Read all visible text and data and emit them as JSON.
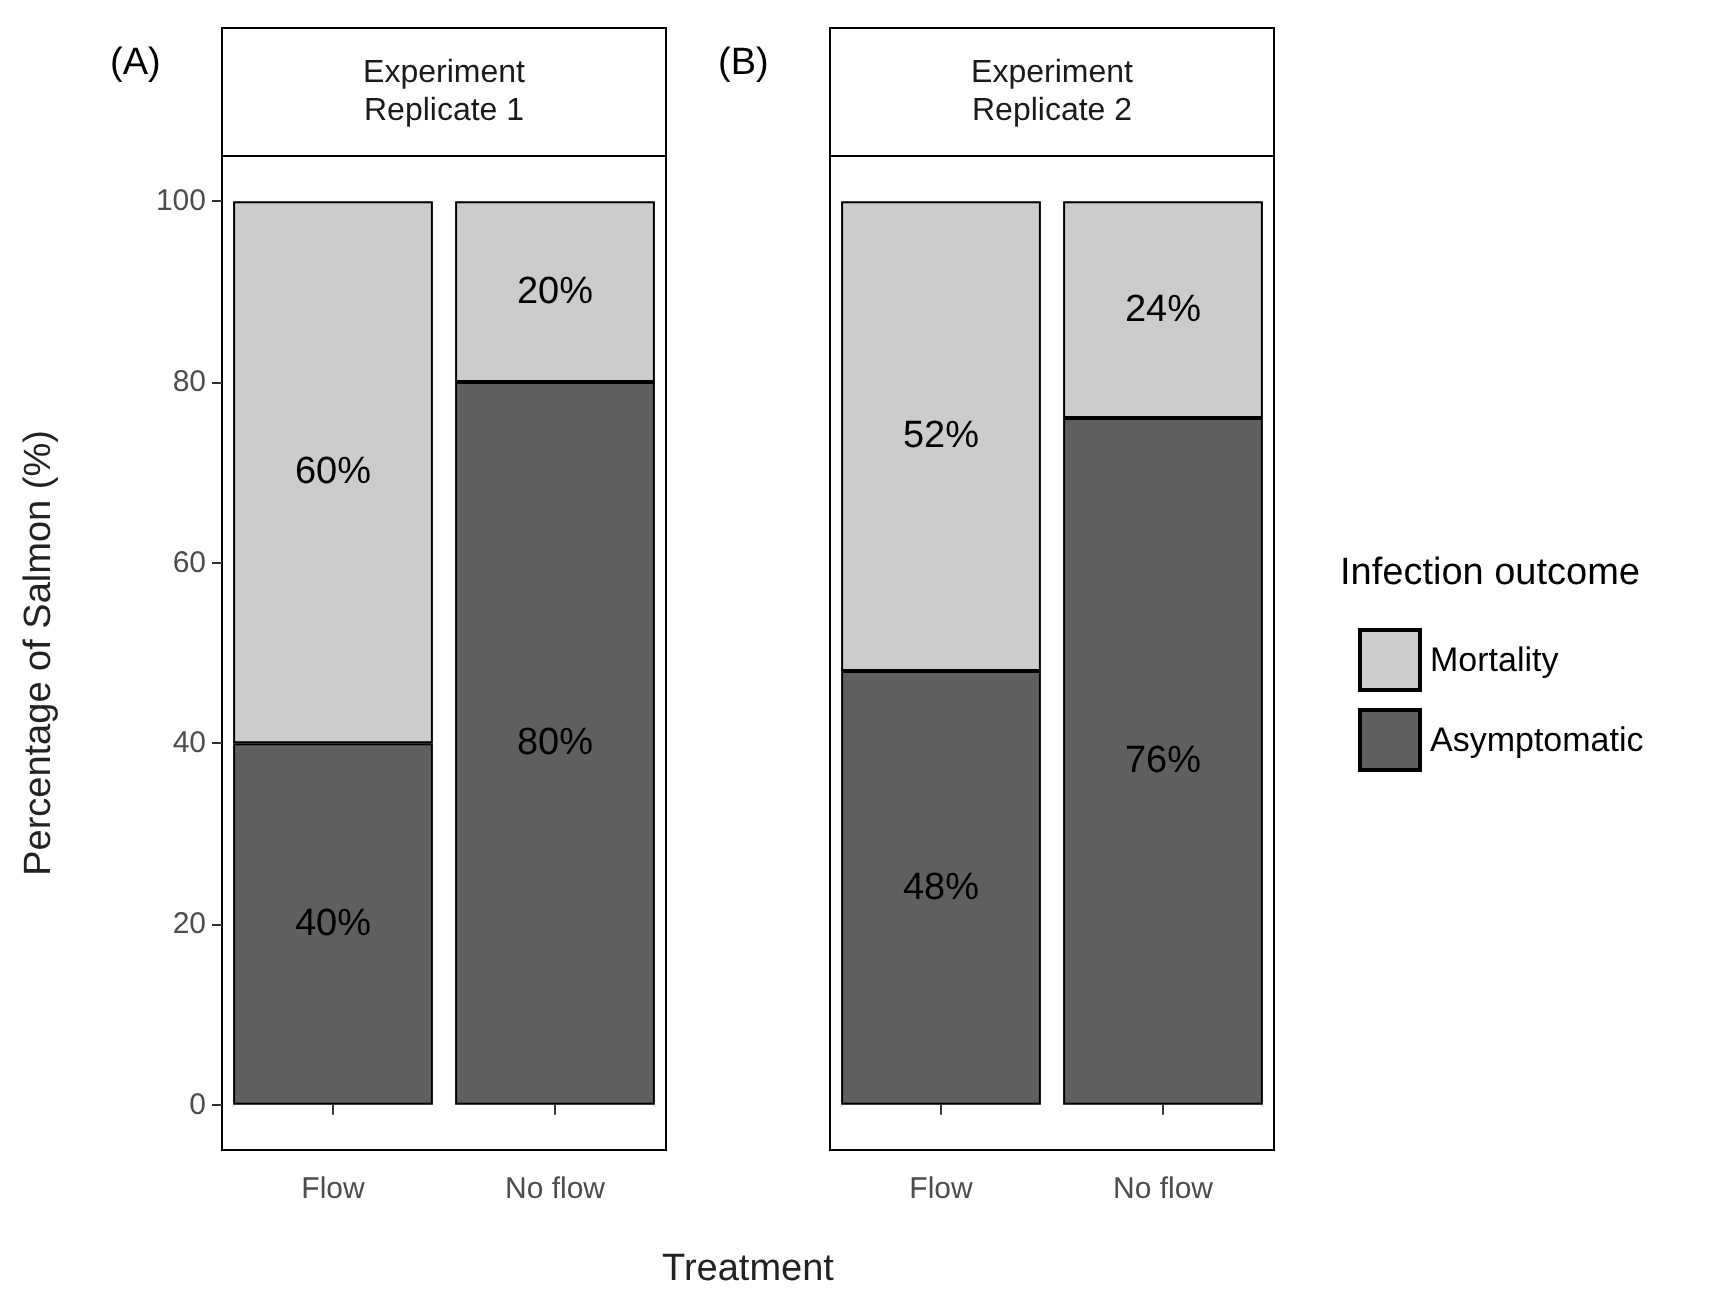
{
  "chart_data": [
    {
      "type": "bar",
      "stacked": true,
      "title": "Experiment\nReplicate 1",
      "annotations": [
        "(A)"
      ],
      "ylabel": "Percentage of Salmon (%)",
      "xlabel": "Treatment",
      "categories": [
        "Flow",
        "No flow"
      ],
      "ylim": [
        -5,
        105
      ],
      "yticks": [
        0,
        20,
        40,
        60,
        80,
        100
      ],
      "grid": false,
      "legend": false,
      "series": [
        {
          "color": "#5f5f5f",
          "values": [
            40,
            80
          ],
          "value_labels": [
            "40%",
            "80%"
          ]
        },
        {
          "color": "#cccccc",
          "values": [
            60,
            20
          ],
          "value_labels": [
            "60%",
            "20%"
          ]
        }
      ]
    },
    {
      "type": "bar",
      "stacked": true,
      "title": "Experiment\nReplicate 2",
      "annotations": [
        "(B)"
      ],
      "legend_title": "Infection outcome",
      "legend": "right",
      "tick_labels": "x",
      "categories": [
        "Flow",
        "No flow"
      ],
      "ylim": [
        -5,
        105
      ],
      "yticks": [
        0,
        20,
        40,
        60,
        80,
        100
      ],
      "grid": false,
      "series": [
        {
          "name": "Asymptomatic",
          "color": "#5f5f5f",
          "values": [
            48,
            76
          ],
          "value_labels": [
            "48%",
            "76%"
          ]
        },
        {
          "name": "Mortality",
          "color": "#cccccc",
          "values": [
            52,
            24
          ],
          "value_labels": [
            "52%",
            "24%"
          ]
        }
      ]
    }
  ]
}
